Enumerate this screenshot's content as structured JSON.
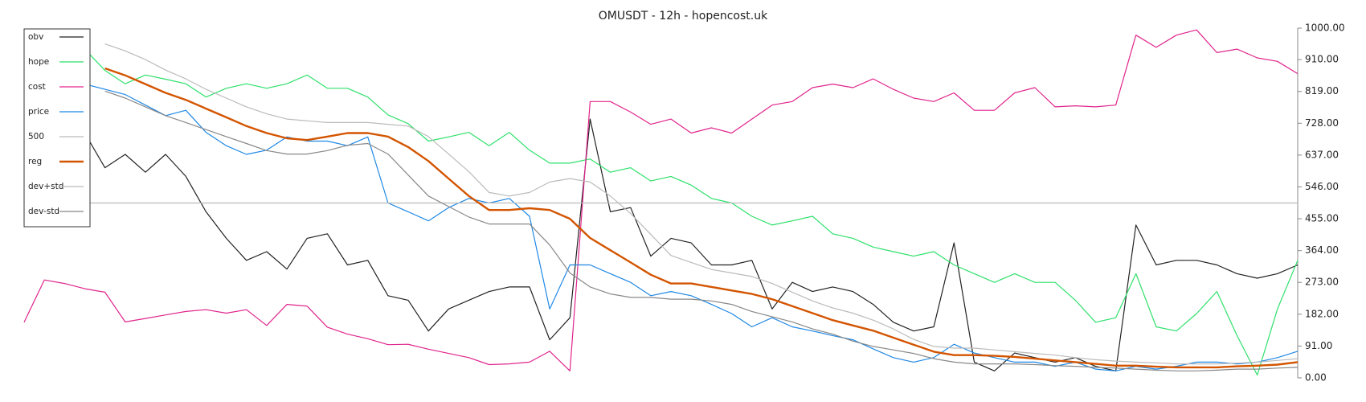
{
  "chart_data": {
    "type": "line",
    "title": "OMUSDT - 12h - hopencost.uk",
    "ylim": [
      0,
      1000
    ],
    "yticks": [
      {
        "value": 0,
        "label": "0.00"
      },
      {
        "value": 91,
        "label": "91.00"
      },
      {
        "value": 182,
        "label": "182.00"
      },
      {
        "value": 273,
        "label": "273.00"
      },
      {
        "value": 364,
        "label": "364.00"
      },
      {
        "value": 455,
        "label": "455.00"
      },
      {
        "value": 546,
        "label": "546.00"
      },
      {
        "value": 637,
        "label": "637.00"
      },
      {
        "value": 728,
        "label": "728.00"
      },
      {
        "value": 819,
        "label": "819.00"
      },
      {
        "value": 910,
        "label": "910.00"
      },
      {
        "value": 1000,
        "label": "1000.00"
      }
    ],
    "legend": "top-left",
    "series": [
      {
        "name": "obv",
        "color": "#222222",
        "values": [
          null,
          null,
          null,
          700,
          601,
          639,
          588,
          639,
          576,
          475,
          399,
          336,
          361,
          311,
          399,
          412,
          323,
          336,
          235,
          222,
          134,
          197,
          222,
          247,
          260,
          260,
          109,
          172,
          740,
          475,
          487,
          348,
          399,
          386,
          323,
          323,
          336,
          197,
          273,
          247,
          260,
          247,
          210,
          159,
          134,
          146,
          386,
          45,
          20,
          71,
          58,
          45,
          58,
          33,
          20,
          437,
          323,
          336,
          336,
          323,
          298,
          285,
          298,
          323
        ]
      },
      {
        "name": "hope",
        "color": "#2ee06b",
        "values": [
          null,
          null,
          null,
          940,
          879,
          841,
          866,
          854,
          841,
          803,
          828,
          841,
          828,
          841,
          866,
          828,
          828,
          803,
          752,
          727,
          677,
          689,
          702,
          664,
          702,
          651,
          614,
          614,
          626,
          588,
          601,
          563,
          576,
          551,
          513,
          500,
          462,
          437,
          449,
          462,
          412,
          399,
          374,
          361,
          348,
          361,
          323,
          298,
          273,
          298,
          273,
          273,
          222,
          159,
          172,
          298,
          146,
          134,
          184,
          247,
          121,
          8,
          197,
          336
        ]
      },
      {
        "name": "cost",
        "color": "#e0248c",
        "values": [
          159,
          280,
          270,
          255,
          245,
          160,
          170,
          180,
          190,
          195,
          185,
          195,
          150,
          210,
          205,
          145,
          125,
          112,
          95,
          96,
          82,
          70,
          58,
          38,
          40,
          45,
          76,
          20,
          790,
          790,
          760,
          725,
          740,
          700,
          715,
          700,
          740,
          780,
          790,
          830,
          840,
          830,
          855,
          825,
          800,
          790,
          815,
          765,
          765,
          815,
          830,
          775,
          778,
          775,
          780,
          980,
          945,
          980,
          995,
          930,
          940,
          915,
          905,
          870
        ]
      },
      {
        "name": "price",
        "color": "#1f88e5",
        "values": [
          null,
          null,
          null,
          840,
          825,
          810,
          780,
          750,
          765,
          702,
          664,
          639,
          651,
          689,
          677,
          677,
          664,
          689,
          500,
          475,
          449,
          487,
          513,
          500,
          513,
          462,
          197,
          323,
          323,
          298,
          273,
          235,
          247,
          235,
          210,
          184,
          146,
          172,
          146,
          134,
          121,
          109,
          83,
          58,
          45,
          58,
          96,
          71,
          58,
          45,
          45,
          33,
          45,
          25,
          20,
          33,
          25,
          33,
          45,
          45,
          40,
          45,
          58,
          76
        ]
      },
      {
        "name": "500",
        "color": "#bbbbbb",
        "values": [
          500,
          500,
          500,
          500,
          500,
          500,
          500,
          500,
          500,
          500,
          500,
          500,
          500,
          500,
          500,
          500,
          500,
          500,
          500,
          500,
          500,
          500,
          500,
          500,
          500,
          500,
          500,
          500,
          500,
          500,
          500,
          500,
          500,
          500,
          500,
          500,
          500,
          500,
          500,
          500,
          500,
          500,
          500,
          500,
          500,
          500,
          500,
          500,
          500,
          500,
          500,
          500,
          500,
          500,
          500,
          500,
          500,
          500,
          500,
          500,
          500,
          500,
          500,
          500
        ]
      },
      {
        "name": "reg",
        "color": "#d35400",
        "values": [
          null,
          null,
          null,
          null,
          885,
          865,
          840,
          815,
          795,
          770,
          745,
          720,
          700,
          685,
          680,
          690,
          700,
          700,
          690,
          660,
          620,
          570,
          520,
          480,
          480,
          485,
          480,
          455,
          400,
          365,
          330,
          295,
          270,
          270,
          260,
          250,
          240,
          225,
          205,
          185,
          165,
          150,
          135,
          115,
          95,
          75,
          65,
          65,
          63,
          60,
          55,
          50,
          45,
          40,
          35,
          35,
          32,
          30,
          30,
          30,
          33,
          35,
          38,
          45
        ]
      },
      {
        "name": "dev+std",
        "color": "#bbbbbb",
        "values": [
          null,
          null,
          null,
          null,
          955,
          935,
          910,
          880,
          855,
          825,
          800,
          775,
          755,
          740,
          735,
          730,
          730,
          730,
          725,
          720,
          690,
          640,
          590,
          530,
          520,
          530,
          560,
          570,
          560,
          520,
          470,
          410,
          350,
          330,
          310,
          300,
          290,
          270,
          245,
          220,
          200,
          185,
          165,
          140,
          110,
          90,
          85,
          85,
          80,
          75,
          70,
          65,
          58,
          52,
          48,
          45,
          43,
          40,
          40,
          40,
          42,
          45,
          50,
          55
        ]
      },
      {
        "name": "dev-std",
        "color": "#888888",
        "values": [
          null,
          null,
          null,
          null,
          820,
          800,
          775,
          750,
          730,
          710,
          690,
          670,
          650,
          640,
          640,
          650,
          665,
          670,
          640,
          580,
          520,
          490,
          460,
          440,
          440,
          440,
          380,
          300,
          260,
          240,
          230,
          230,
          225,
          225,
          220,
          210,
          190,
          175,
          160,
          140,
          125,
          105,
          90,
          80,
          70,
          55,
          45,
          40,
          40,
          40,
          38,
          35,
          33,
          30,
          28,
          25,
          22,
          20,
          20,
          22,
          25,
          25,
          28,
          30
        ]
      }
    ]
  }
}
